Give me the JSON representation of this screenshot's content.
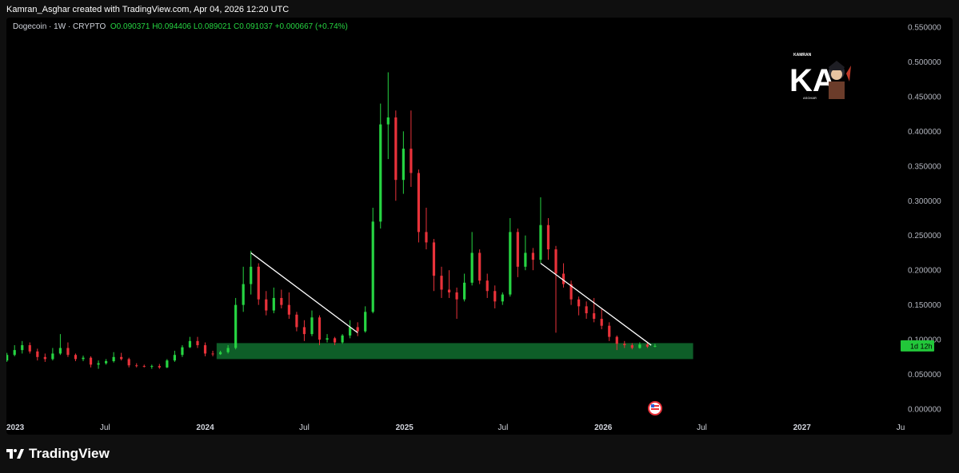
{
  "caption": "Kamran_Asghar created with TradingView.com, Apr 04, 2026 12:20 UTC",
  "header": {
    "symbol": "Dogecoin · 1W · CRYPTO",
    "open": "O0.090371",
    "high": "H0.094406",
    "low": "L0.089021",
    "close": "C0.091037",
    "change": "+0.000667 (+0.74%)"
  },
  "logo": {
    "top_text": "KAMRAN",
    "letters": "KA",
    "side_text": "ASGHAR",
    "bottom_text": "ASGHAR"
  },
  "footer": {
    "brand": "TradingView"
  },
  "price_label": "1d 12h",
  "colors": {
    "up": "#26d442",
    "down": "#e8323a",
    "zone": "#0e5e28",
    "trendline": "#ffffff",
    "label_bg": "#22c73a"
  },
  "chart_data": {
    "type": "candlestick",
    "title": "Dogecoin · 1W · CRYPTO",
    "timeframe": "1W",
    "x_ticks": [
      "2023",
      "Jul",
      "2024",
      "Jul",
      "2025",
      "Jul",
      "2026",
      "Jul",
      "2027",
      "Ju"
    ],
    "y_ticks": [
      "0.550000",
      "0.500000",
      "0.450000",
      "0.400000",
      "0.350000",
      "0.300000",
      "0.250000",
      "0.200000",
      "0.150000",
      "0.100000",
      "0.050000",
      "0.000000"
    ],
    "ylim": [
      0,
      0.56
    ],
    "grid": false,
    "support_zone": {
      "from": "2024-01-22",
      "to": "2026-06-15",
      "low": 0.072,
      "high": 0.095
    },
    "trendlines": [
      {
        "from": [
          "2024-03-25",
          0.225
        ],
        "to": [
          "2024-10-07",
          0.11
        ]
      },
      {
        "from": [
          "2025-09-08",
          0.21
        ],
        "to": [
          "2026-03-30",
          0.092
        ]
      }
    ],
    "candles": [
      [
        "2023-01-02",
        0.07,
        0.081,
        0.068,
        0.078
      ],
      [
        "2023-01-16",
        0.078,
        0.092,
        0.076,
        0.085
      ],
      [
        "2023-01-30",
        0.085,
        0.098,
        0.08,
        0.092
      ],
      [
        "2023-02-13",
        0.092,
        0.096,
        0.08,
        0.083
      ],
      [
        "2023-02-27",
        0.083,
        0.087,
        0.07,
        0.075
      ],
      [
        "2023-03-13",
        0.075,
        0.08,
        0.068,
        0.072
      ],
      [
        "2023-03-27",
        0.072,
        0.088,
        0.07,
        0.08
      ],
      [
        "2023-04-10",
        0.08,
        0.108,
        0.078,
        0.088
      ],
      [
        "2023-04-24",
        0.088,
        0.096,
        0.075,
        0.078
      ],
      [
        "2023-05-08",
        0.078,
        0.08,
        0.069,
        0.072
      ],
      [
        "2023-05-22",
        0.072,
        0.077,
        0.069,
        0.074
      ],
      [
        "2023-06-05",
        0.074,
        0.076,
        0.06,
        0.064
      ],
      [
        "2023-06-19",
        0.064,
        0.07,
        0.058,
        0.066
      ],
      [
        "2023-07-03",
        0.066,
        0.072,
        0.064,
        0.069
      ],
      [
        "2023-07-17",
        0.069,
        0.082,
        0.067,
        0.075
      ],
      [
        "2023-07-31",
        0.075,
        0.081,
        0.07,
        0.072
      ],
      [
        "2023-08-14",
        0.072,
        0.074,
        0.06,
        0.063
      ],
      [
        "2023-08-28",
        0.063,
        0.066,
        0.06,
        0.062
      ],
      [
        "2023-09-11",
        0.062,
        0.064,
        0.06,
        0.061
      ],
      [
        "2023-09-25",
        0.061,
        0.064,
        0.058,
        0.062
      ],
      [
        "2023-10-09",
        0.062,
        0.065,
        0.058,
        0.06
      ],
      [
        "2023-10-23",
        0.06,
        0.072,
        0.059,
        0.07
      ],
      [
        "2023-11-06",
        0.07,
        0.084,
        0.068,
        0.078
      ],
      [
        "2023-11-20",
        0.078,
        0.092,
        0.075,
        0.089
      ],
      [
        "2023-12-04",
        0.089,
        0.104,
        0.088,
        0.098
      ],
      [
        "2023-12-18",
        0.098,
        0.104,
        0.088,
        0.092
      ],
      [
        "2024-01-01",
        0.092,
        0.096,
        0.076,
        0.08
      ],
      [
        "2024-01-15",
        0.08,
        0.084,
        0.076,
        0.079
      ],
      [
        "2024-01-29",
        0.079,
        0.084,
        0.078,
        0.082
      ],
      [
        "2024-02-12",
        0.082,
        0.092,
        0.08,
        0.088
      ],
      [
        "2024-02-26",
        0.088,
        0.16,
        0.086,
        0.15
      ],
      [
        "2024-03-11",
        0.15,
        0.205,
        0.14,
        0.18
      ],
      [
        "2024-03-25",
        0.18,
        0.228,
        0.165,
        0.205
      ],
      [
        "2024-04-08",
        0.205,
        0.21,
        0.15,
        0.158
      ],
      [
        "2024-04-22",
        0.158,
        0.17,
        0.135,
        0.142
      ],
      [
        "2024-05-06",
        0.142,
        0.175,
        0.138,
        0.16
      ],
      [
        "2024-05-20",
        0.16,
        0.172,
        0.145,
        0.15
      ],
      [
        "2024-06-03",
        0.15,
        0.168,
        0.13,
        0.136
      ],
      [
        "2024-06-17",
        0.136,
        0.14,
        0.112,
        0.118
      ],
      [
        "2024-07-01",
        0.118,
        0.128,
        0.098,
        0.108
      ],
      [
        "2024-07-15",
        0.108,
        0.142,
        0.105,
        0.132
      ],
      [
        "2024-07-29",
        0.132,
        0.135,
        0.092,
        0.1
      ],
      [
        "2024-08-12",
        0.1,
        0.108,
        0.096,
        0.102
      ],
      [
        "2024-08-26",
        0.102,
        0.104,
        0.092,
        0.096
      ],
      [
        "2024-09-09",
        0.096,
        0.108,
        0.094,
        0.106
      ],
      [
        "2024-09-23",
        0.106,
        0.128,
        0.102,
        0.118
      ],
      [
        "2024-10-07",
        0.118,
        0.125,
        0.105,
        0.112
      ],
      [
        "2024-10-21",
        0.112,
        0.148,
        0.11,
        0.14
      ],
      [
        "2024-11-04",
        0.14,
        0.29,
        0.138,
        0.27
      ],
      [
        "2024-11-18",
        0.27,
        0.44,
        0.26,
        0.41
      ],
      [
        "2024-12-02",
        0.41,
        0.485,
        0.36,
        0.42
      ],
      [
        "2024-12-16",
        0.42,
        0.43,
        0.3,
        0.33
      ],
      [
        "2024-12-30",
        0.33,
        0.4,
        0.31,
        0.375
      ],
      [
        "2025-01-13",
        0.375,
        0.43,
        0.32,
        0.34
      ],
      [
        "2025-01-27",
        0.34,
        0.345,
        0.24,
        0.255
      ],
      [
        "2025-02-10",
        0.255,
        0.29,
        0.23,
        0.24
      ],
      [
        "2025-02-24",
        0.24,
        0.245,
        0.17,
        0.192
      ],
      [
        "2025-03-10",
        0.192,
        0.205,
        0.16,
        0.172
      ],
      [
        "2025-03-24",
        0.172,
        0.2,
        0.16,
        0.168
      ],
      [
        "2025-04-07",
        0.168,
        0.175,
        0.13,
        0.158
      ],
      [
        "2025-04-21",
        0.158,
        0.195,
        0.155,
        0.182
      ],
      [
        "2025-05-05",
        0.182,
        0.255,
        0.178,
        0.225
      ],
      [
        "2025-05-19",
        0.225,
        0.23,
        0.18,
        0.185
      ],
      [
        "2025-06-02",
        0.185,
        0.195,
        0.16,
        0.17
      ],
      [
        "2025-06-16",
        0.17,
        0.178,
        0.145,
        0.155
      ],
      [
        "2025-06-30",
        0.155,
        0.168,
        0.15,
        0.165
      ],
      [
        "2025-07-14",
        0.165,
        0.275,
        0.162,
        0.255
      ],
      [
        "2025-07-28",
        0.255,
        0.26,
        0.19,
        0.205
      ],
      [
        "2025-08-11",
        0.205,
        0.25,
        0.2,
        0.225
      ],
      [
        "2025-08-25",
        0.225,
        0.232,
        0.2,
        0.215
      ],
      [
        "2025-09-08",
        0.215,
        0.305,
        0.21,
        0.265
      ],
      [
        "2025-09-22",
        0.265,
        0.275,
        0.215,
        0.23
      ],
      [
        "2025-10-06",
        0.23,
        0.235,
        0.11,
        0.195
      ],
      [
        "2025-10-20",
        0.195,
        0.21,
        0.175,
        0.18
      ],
      [
        "2025-11-03",
        0.18,
        0.185,
        0.15,
        0.158
      ],
      [
        "2025-11-17",
        0.158,
        0.162,
        0.135,
        0.148
      ],
      [
        "2025-12-01",
        0.148,
        0.155,
        0.13,
        0.138
      ],
      [
        "2025-12-15",
        0.138,
        0.16,
        0.125,
        0.13
      ],
      [
        "2025-12-29",
        0.13,
        0.145,
        0.115,
        0.12
      ],
      [
        "2026-01-12",
        0.12,
        0.125,
        0.098,
        0.104
      ],
      [
        "2026-01-26",
        0.104,
        0.106,
        0.085,
        0.094
      ],
      [
        "2026-02-09",
        0.094,
        0.098,
        0.088,
        0.092
      ],
      [
        "2026-02-23",
        0.092,
        0.095,
        0.086,
        0.088
      ],
      [
        "2026-03-09",
        0.088,
        0.096,
        0.087,
        0.093
      ],
      [
        "2026-03-23",
        0.093,
        0.096,
        0.088,
        0.09
      ],
      [
        "2026-04-06",
        0.09,
        0.094,
        0.089,
        0.091
      ]
    ]
  }
}
